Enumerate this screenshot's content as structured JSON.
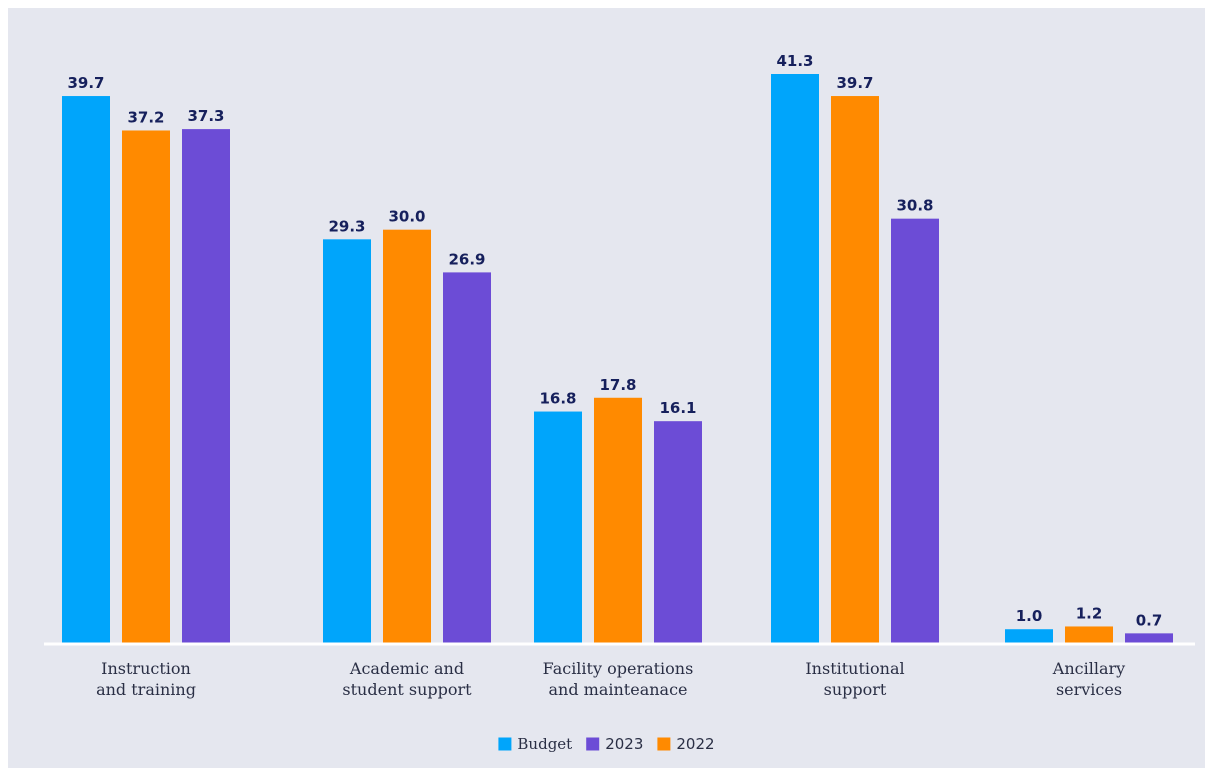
{
  "chart_data": {
    "type": "bar",
    "categories": [
      [
        "Instruction",
        "and training"
      ],
      [
        "Academic and",
        "student support"
      ],
      [
        "Facility operations",
        "and mainteanace"
      ],
      [
        "Institutional",
        "support"
      ],
      [
        "Ancillary",
        "services"
      ]
    ],
    "series_draw_order": [
      "Budget",
      "2022",
      "2023"
    ],
    "series": [
      {
        "name": "Budget",
        "color": "#00a5fb",
        "values": [
          39.7,
          29.3,
          16.8,
          41.3,
          1.0
        ]
      },
      {
        "name": "2023",
        "color": "#6c4cd6",
        "values": [
          37.3,
          26.9,
          16.1,
          30.8,
          0.7
        ]
      },
      {
        "name": "2022",
        "color": "#ff8a00",
        "values": [
          37.2,
          30.0,
          17.8,
          39.7,
          1.2
        ]
      }
    ],
    "legend": {
      "placement": "bottom-center",
      "order": [
        "Budget",
        "2023",
        "2022"
      ]
    },
    "ylim": [
      0,
      41.3
    ],
    "grid": false,
    "baseline_color": "#ffffff",
    "background": "#e5e7ef"
  }
}
